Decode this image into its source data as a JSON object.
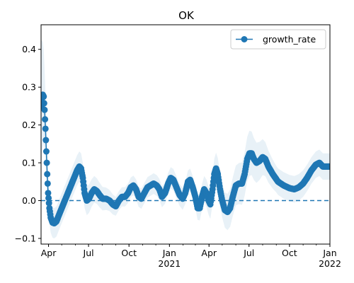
{
  "chart_data": {
    "type": "line",
    "title": "OK",
    "xlabel": "",
    "ylabel": "",
    "x_axis": {
      "type": "date",
      "range": [
        "2020-03-15",
        "2022-01-01"
      ],
      "ticks": [
        {
          "date": "2020-04-01",
          "label": "Apr",
          "sublabel": ""
        },
        {
          "date": "2020-07-01",
          "label": "Jul",
          "sublabel": ""
        },
        {
          "date": "2020-10-01",
          "label": "Oct",
          "sublabel": ""
        },
        {
          "date": "2021-01-01",
          "label": "Jan",
          "sublabel": "2021"
        },
        {
          "date": "2021-04-01",
          "label": "Apr",
          "sublabel": ""
        },
        {
          "date": "2021-07-01",
          "label": "Jul",
          "sublabel": ""
        },
        {
          "date": "2021-10-01",
          "label": "Oct",
          "sublabel": ""
        },
        {
          "date": "2022-01-01",
          "label": "Jan",
          "sublabel": "2022"
        }
      ]
    },
    "y_axis": {
      "range": [
        -0.115,
        0.465
      ],
      "ticks": [
        -0.1,
        0.0,
        0.1,
        0.2,
        0.3,
        0.4
      ],
      "tick_labels": [
        "−0.1",
        "0.0",
        "0.1",
        "0.2",
        "0.3",
        "0.4"
      ]
    },
    "grid": false,
    "legend": {
      "position": "top-right"
    },
    "reference_line": {
      "y": 0.0,
      "style": "dashed",
      "color": "#1f77b4"
    },
    "series": [
      {
        "name": "growth_rate",
        "color": "#1f77b4",
        "band_color": "#1f77b4",
        "band_opacity": 0.1,
        "marker": "circle",
        "band_halfwidth_keypoints": [
          [
            "2020-03-15",
            0.17
          ],
          [
            "2020-04-01",
            0.04
          ],
          [
            "2020-06-20",
            0.04
          ],
          [
            "2020-09-01",
            0.025
          ],
          [
            "2021-03-01",
            0.03
          ],
          [
            "2021-07-01",
            0.06
          ],
          [
            "2021-09-01",
            0.035
          ],
          [
            "2022-01-01",
            0.035
          ]
        ],
        "keypoints": [
          [
            "2020-03-15",
            0.25
          ],
          [
            "2020-03-17",
            0.27
          ],
          [
            "2020-03-19",
            0.28
          ],
          [
            "2020-03-21",
            0.275
          ],
          [
            "2020-03-23",
            0.24
          ],
          [
            "2020-03-25",
            0.19
          ],
          [
            "2020-03-27",
            0.13
          ],
          [
            "2020-03-29",
            0.07
          ],
          [
            "2020-03-31",
            0.02
          ],
          [
            "2020-04-03",
            -0.02
          ],
          [
            "2020-04-06",
            -0.045
          ],
          [
            "2020-04-10",
            -0.058
          ],
          [
            "2020-04-14",
            -0.06
          ],
          [
            "2020-04-19",
            -0.055
          ],
          [
            "2020-04-24",
            -0.04
          ],
          [
            "2020-05-01",
            -0.02
          ],
          [
            "2020-05-08",
            0.0
          ],
          [
            "2020-05-15",
            0.02
          ],
          [
            "2020-05-22",
            0.04
          ],
          [
            "2020-05-29",
            0.06
          ],
          [
            "2020-06-05",
            0.08
          ],
          [
            "2020-06-10",
            0.09
          ],
          [
            "2020-06-14",
            0.085
          ],
          [
            "2020-06-18",
            0.06
          ],
          [
            "2020-06-22",
            0.02
          ],
          [
            "2020-06-27",
            0.0
          ],
          [
            "2020-07-02",
            0.005
          ],
          [
            "2020-07-08",
            0.02
          ],
          [
            "2020-07-14",
            0.03
          ],
          [
            "2020-07-20",
            0.025
          ],
          [
            "2020-07-26",
            0.015
          ],
          [
            "2020-08-02",
            0.005
          ],
          [
            "2020-08-10",
            0.005
          ],
          [
            "2020-08-18",
            0.0
          ],
          [
            "2020-08-25",
            -0.01
          ],
          [
            "2020-09-01",
            -0.015
          ],
          [
            "2020-09-08",
            0.0
          ],
          [
            "2020-09-15",
            0.01
          ],
          [
            "2020-09-22",
            0.01
          ],
          [
            "2020-09-29",
            0.02
          ],
          [
            "2020-10-05",
            0.035
          ],
          [
            "2020-10-11",
            0.04
          ],
          [
            "2020-10-17",
            0.03
          ],
          [
            "2020-10-23",
            0.01
          ],
          [
            "2020-10-29",
            0.005
          ],
          [
            "2020-11-05",
            0.02
          ],
          [
            "2020-11-12",
            0.035
          ],
          [
            "2020-11-19",
            0.04
          ],
          [
            "2020-11-26",
            0.045
          ],
          [
            "2020-12-03",
            0.04
          ],
          [
            "2020-12-09",
            0.03
          ],
          [
            "2020-12-15",
            0.01
          ],
          [
            "2020-12-22",
            0.02
          ],
          [
            "2020-12-29",
            0.045
          ],
          [
            "2021-01-04",
            0.06
          ],
          [
            "2021-01-10",
            0.055
          ],
          [
            "2021-01-17",
            0.035
          ],
          [
            "2021-01-24",
            0.015
          ],
          [
            "2021-01-31",
            0.005
          ],
          [
            "2021-02-06",
            0.02
          ],
          [
            "2021-02-12",
            0.05
          ],
          [
            "2021-02-17",
            0.055
          ],
          [
            "2021-02-23",
            0.035
          ],
          [
            "2021-03-01",
            0.01
          ],
          [
            "2021-03-06",
            -0.02
          ],
          [
            "2021-03-11",
            -0.02
          ],
          [
            "2021-03-16",
            0.01
          ],
          [
            "2021-03-21",
            0.03
          ],
          [
            "2021-03-26",
            0.02
          ],
          [
            "2021-03-31",
            0.0
          ],
          [
            "2021-04-04",
            -0.01
          ],
          [
            "2021-04-09",
            0.03
          ],
          [
            "2021-04-13",
            0.07
          ],
          [
            "2021-04-17",
            0.085
          ],
          [
            "2021-04-21",
            0.07
          ],
          [
            "2021-04-26",
            0.03
          ],
          [
            "2021-05-01",
            0.0
          ],
          [
            "2021-05-07",
            -0.025
          ],
          [
            "2021-05-13",
            -0.03
          ],
          [
            "2021-05-19",
            -0.02
          ],
          [
            "2021-05-25",
            0.01
          ],
          [
            "2021-06-01",
            0.04
          ],
          [
            "2021-06-08",
            0.045
          ],
          [
            "2021-06-15",
            0.045
          ],
          [
            "2021-06-21",
            0.07
          ],
          [
            "2021-06-27",
            0.11
          ],
          [
            "2021-07-02",
            0.125
          ],
          [
            "2021-07-07",
            0.125
          ],
          [
            "2021-07-12",
            0.11
          ],
          [
            "2021-07-18",
            0.1
          ],
          [
            "2021-07-25",
            0.105
          ],
          [
            "2021-08-01",
            0.115
          ],
          [
            "2021-08-07",
            0.11
          ],
          [
            "2021-08-14",
            0.09
          ],
          [
            "2021-08-24",
            0.07
          ],
          [
            "2021-09-05",
            0.05
          ],
          [
            "2021-09-18",
            0.04
          ],
          [
            "2021-10-01",
            0.033
          ],
          [
            "2021-10-12",
            0.03
          ],
          [
            "2021-10-22",
            0.035
          ],
          [
            "2021-11-01",
            0.045
          ],
          [
            "2021-11-10",
            0.06
          ],
          [
            "2021-11-20",
            0.08
          ],
          [
            "2021-11-30",
            0.095
          ],
          [
            "2021-12-08",
            0.1
          ],
          [
            "2021-12-16",
            0.09
          ],
          [
            "2022-01-01",
            0.09
          ]
        ]
      }
    ]
  }
}
